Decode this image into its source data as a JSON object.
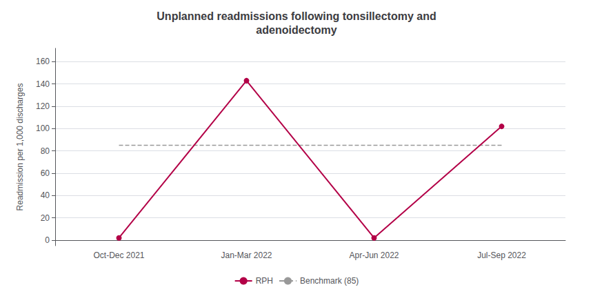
{
  "chart_data": {
    "type": "line",
    "title": "Unplanned readmissions following tonsillectomy and\nadenoidectomy",
    "ylabel": "Readmission per 1,000 discharges",
    "categories": [
      "Oct-Dec 2021",
      "Jan-Mar 2022",
      "Apr-Jun 2022",
      "Jul-Sep 2022"
    ],
    "series": [
      {
        "name": "RPH",
        "color": "#b30047",
        "values": [
          2,
          143,
          2,
          102
        ],
        "marker": "circle",
        "line_style": "solid"
      },
      {
        "name": "Benchmark (85)",
        "color": "#999999",
        "values": [
          85,
          85,
          85,
          85
        ],
        "line_style": "dashed"
      }
    ],
    "ylim": [
      -5,
      172
    ],
    "yticks": [
      0,
      20,
      40,
      60,
      80,
      100,
      120,
      140,
      160
    ],
    "grid": true,
    "legend": "bottom"
  }
}
